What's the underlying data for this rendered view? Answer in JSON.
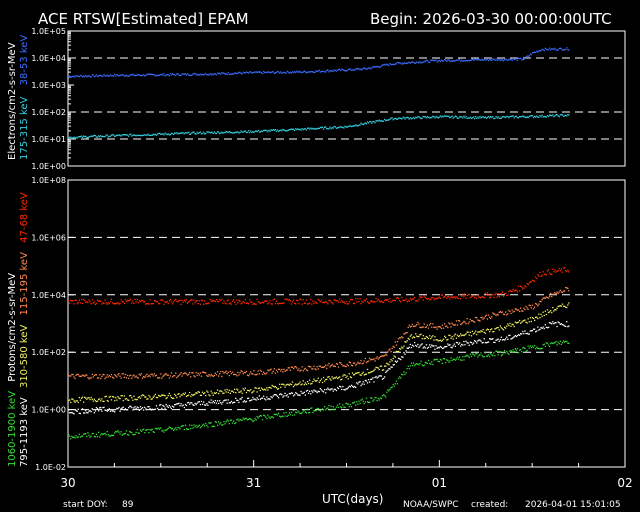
{
  "header": {
    "title": "ACE RTSW[Estimated] EPAM",
    "begin": "Begin: 2026-03-30 00:00:00UTC"
  },
  "footer": {
    "start_doy_label": "start DOY:",
    "start_doy_value": "89",
    "credit": "NOAA/SWPC",
    "created_label": "created:",
    "created_value": "2026-04-01 15:01:05"
  },
  "colors": {
    "background": "#000000",
    "axes": "#ffffff",
    "e_38_53": "#3a6cff",
    "e_175_315": "#33d0e0",
    "p_47_68": "#ff2a00",
    "p_115_195": "#ff8a50",
    "p_310_580": "#f0f060",
    "p_795_1193": "#ffffff",
    "p_1060_1900": "#33dd33"
  },
  "chart_data": [
    {
      "type": "scatter",
      "panel": "electrons",
      "ylabel": "Electrons/cm2-s-sr-MeV",
      "yscale": "log",
      "ylim": [
        1,
        100000
      ],
      "yticks": [
        "1.0E+00",
        "1.0E+01",
        "1.0E+02",
        "1.0E+03",
        "1.0E+04",
        "1.0E+05"
      ],
      "dashed_grid_at": [
        10,
        100,
        10000
      ],
      "xlim": [
        0,
        3
      ],
      "series": [
        {
          "name": "38-53 keV",
          "color_key": "e_38_53",
          "x": [
            0.0,
            0.25,
            0.5,
            0.75,
            1.0,
            1.25,
            1.5,
            1.6,
            1.75,
            2.0,
            2.2,
            2.45,
            2.5,
            2.55,
            2.7
          ],
          "y": [
            2200,
            2400,
            2500,
            2700,
            3000,
            3200,
            3800,
            4200,
            6500,
            8500,
            9000,
            9500,
            16000,
            22000,
            23000
          ]
        },
        {
          "name": "175-315 keV",
          "color_key": "e_175_315",
          "x": [
            0.0,
            0.25,
            0.5,
            0.75,
            1.0,
            1.25,
            1.5,
            1.6,
            1.75,
            2.0,
            2.25,
            2.5,
            2.7
          ],
          "y": [
            12,
            14,
            16,
            18,
            20,
            24,
            30,
            40,
            60,
            70,
            65,
            72,
            80
          ]
        }
      ]
    },
    {
      "type": "scatter",
      "panel": "protons",
      "ylabel": "Protons/cm2-s-sr-MeV",
      "yscale": "log",
      "ylim": [
        0.01,
        100000000
      ],
      "yticks": [
        "1.0E-02",
        "1.0E+00",
        "1.0E+02",
        "1.0E+04",
        "1.0E+06",
        "1.0E+08"
      ],
      "dashed_grid_at": [
        1,
        100,
        10000,
        1000000
      ],
      "xlim": [
        0,
        3
      ],
      "xticks": [
        "30",
        "31",
        "01",
        "02"
      ],
      "xlabel": "UTC(days)",
      "series": [
        {
          "name": "47-68 keV",
          "color_key": "p_47_68",
          "x": [
            0.0,
            0.5,
            1.0,
            1.5,
            1.8,
            2.0,
            2.2,
            2.35,
            2.45,
            2.55,
            2.7
          ],
          "y": [
            6000,
            6000,
            6000,
            6200,
            7000,
            8500,
            9500,
            11000,
            20000,
            60000,
            80000
          ]
        },
        {
          "name": "115-195 keV",
          "color_key": "p_115_195",
          "x": [
            0.0,
            0.5,
            1.0,
            1.5,
            1.7,
            1.85,
            2.0,
            2.2,
            2.35,
            2.5,
            2.6,
            2.7
          ],
          "y": [
            15,
            16,
            20,
            40,
            70,
            1000,
            800,
            1500,
            2500,
            4000,
            10000,
            18000
          ]
        },
        {
          "name": "310-580 keV",
          "color_key": "p_310_580",
          "x": [
            0.0,
            0.5,
            1.0,
            1.5,
            1.7,
            1.85,
            2.0,
            2.2,
            2.35,
            2.5,
            2.6,
            2.7
          ],
          "y": [
            2.2,
            3,
            5,
            15,
            30,
            400,
            300,
            500,
            800,
            1500,
            3000,
            5000
          ]
        },
        {
          "name": "795-1193 keV",
          "color_key": "p_795_1193",
          "x": [
            0.0,
            0.5,
            1.0,
            1.5,
            1.7,
            1.85,
            2.0,
            2.2,
            2.35,
            2.5,
            2.6,
            2.7
          ],
          "y": [
            0.9,
            1.3,
            2.5,
            6,
            15,
            200,
            150,
            250,
            300,
            600,
            1000,
            1000
          ]
        },
        {
          "name": "1060-1900 keV",
          "color_key": "p_1060_1900",
          "x": [
            0.0,
            0.5,
            1.0,
            1.5,
            1.7,
            1.85,
            2.0,
            2.2,
            2.35,
            2.5,
            2.6,
            2.7
          ],
          "y": [
            0.12,
            0.2,
            0.5,
            1.5,
            3,
            40,
            50,
            80,
            100,
            150,
            200,
            250
          ]
        }
      ]
    }
  ]
}
